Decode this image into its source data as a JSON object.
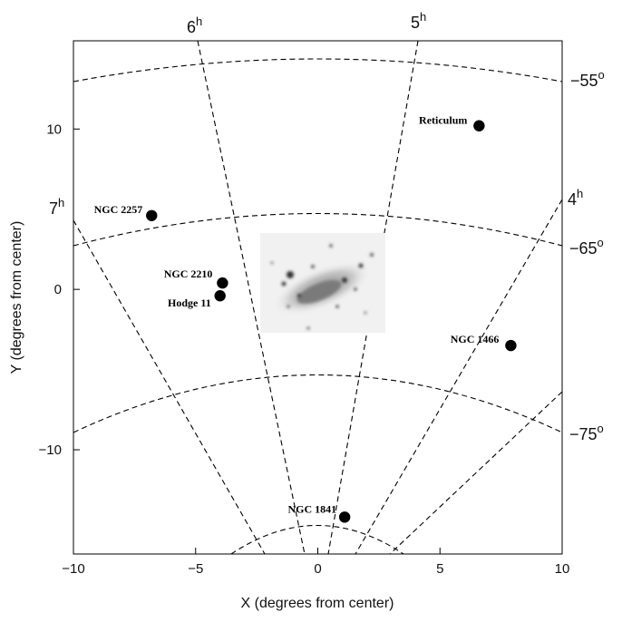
{
  "chart_data": {
    "type": "scatter",
    "title": "",
    "xlabel": "X (degrees from center)",
    "ylabel": "Y (degrees from center)",
    "xlim": [
      -10,
      10
    ],
    "ylim": [
      -16.5,
      15.5
    ],
    "xticks": [
      -10,
      -5,
      0,
      5,
      10
    ],
    "xtick_labels": [
      "−10",
      "−5",
      "0",
      "5",
      "10"
    ],
    "yticks": [
      -10,
      0,
      10
    ],
    "ytick_labels": [
      "−10",
      "0",
      "10"
    ],
    "grid": false,
    "points": [
      {
        "label": "Reticulum",
        "x": 6.6,
        "y": 10.2
      },
      {
        "label": "NGC 2257",
        "x": -6.8,
        "y": 4.6
      },
      {
        "label": "NGC 2210",
        "x": -3.9,
        "y": 0.4
      },
      {
        "label": "Hodge 11",
        "x": -4.0,
        "y": -0.4
      },
      {
        "label": "NGC 1466",
        "x": 7.9,
        "y": -3.5
      },
      {
        "label": "NGC 1841",
        "x": 1.1,
        "y": -14.2
      }
    ],
    "ra_labels": [
      {
        "hour": "7",
        "unit": "h"
      },
      {
        "hour": "6",
        "unit": "h"
      },
      {
        "hour": "5",
        "unit": "h"
      },
      {
        "hour": "4",
        "unit": "h"
      }
    ],
    "dec_labels": [
      {
        "deg": "−55",
        "unit": "o"
      },
      {
        "deg": "−65",
        "unit": "o"
      },
      {
        "deg": "−75",
        "unit": "o"
      }
    ],
    "inset_image": "LMC"
  }
}
